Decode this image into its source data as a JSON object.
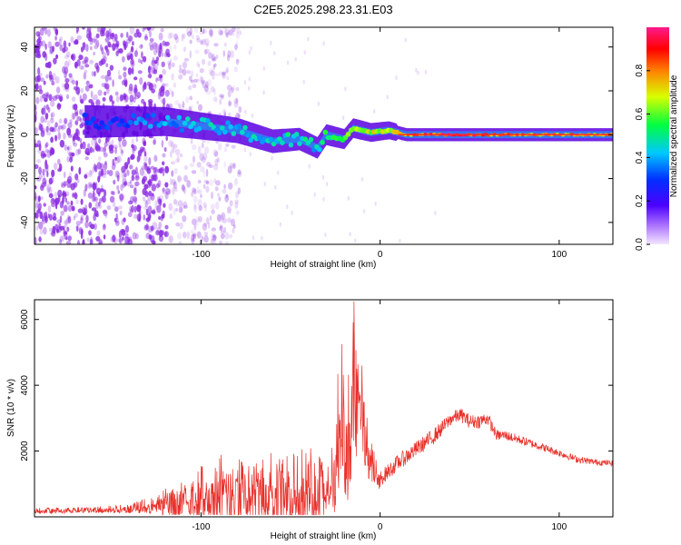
{
  "title": "C2E5.2025.298.23.31.E03",
  "colors": {
    "noise": "#8a2be2",
    "track": "#5a00e0",
    "snr_line": "#e8302a",
    "colorbar": [
      "#f3e6ff",
      "#7b2bf2",
      "#0000ff",
      "#00c8ff",
      "#00ff40",
      "#ffff00",
      "#ff8000",
      "#ff0000",
      "#ff1a8c"
    ]
  },
  "chart_data": [
    {
      "type": "heatmap",
      "name": "spectrogram",
      "xlabel": "Height of straight line (km)",
      "ylabel": "Frequency (Hz)",
      "xlim": [
        -193,
        130
      ],
      "ylim": [
        -50,
        49
      ],
      "xticks": [
        -100,
        0,
        100
      ],
      "yticks": [
        40,
        20,
        0,
        -20,
        -40
      ],
      "colorbar": {
        "label": "Normalized spectral amplitude",
        "range": [
          0,
          1
        ],
        "ticks": [
          "0.0",
          "0.2",
          "0.4",
          "0.6",
          "0.8"
        ],
        "tick_values": [
          0,
          0.2,
          0.4,
          0.6,
          0.8
        ]
      },
      "ridge": [
        {
          "x": -160,
          "f": 6,
          "amp": 0.3
        },
        {
          "x": -140,
          "f": 6,
          "amp": 0.35
        },
        {
          "x": -120,
          "f": 6,
          "amp": 0.4
        },
        {
          "x": -100,
          "f": 4,
          "amp": 0.45
        },
        {
          "x": -80,
          "f": 2,
          "amp": 0.45
        },
        {
          "x": -60,
          "f": -3,
          "amp": 0.45
        },
        {
          "x": -45,
          "f": -2,
          "amp": 0.5
        },
        {
          "x": -35,
          "f": -6,
          "amp": 0.45
        },
        {
          "x": -30,
          "f": 0,
          "amp": 0.55
        },
        {
          "x": -20,
          "f": -2,
          "amp": 0.7
        },
        {
          "x": -15,
          "f": 3,
          "amp": 0.65
        },
        {
          "x": -5,
          "f": 1,
          "amp": 0.7
        },
        {
          "x": 5,
          "f": 2,
          "amp": 0.65
        },
        {
          "x": 15,
          "f": 0,
          "amp": 0.8
        },
        {
          "x": 40,
          "f": 0,
          "amp": 0.95
        },
        {
          "x": 60,
          "f": 0,
          "amp": 0.85
        },
        {
          "x": 90,
          "f": 0,
          "amp": 0.75
        },
        {
          "x": 110,
          "f": 0,
          "amp": 0.8
        },
        {
          "x": 130,
          "f": 0,
          "amp": 0.75
        }
      ]
    },
    {
      "type": "line",
      "name": "snr",
      "xlabel": "Height of straight line (km)",
      "ylabel": "SNR (10 * v/v)",
      "xlim": [
        -193,
        130
      ],
      "ylim": [
        0,
        6600
      ],
      "xticks": [
        -100,
        0,
        100
      ],
      "yticks": [
        2000,
        4000,
        6000
      ],
      "series": [
        {
          "name": "SNR",
          "envelope": {
            "x": [
              -193,
              -160,
              -140,
              -125,
              -115,
              -105,
              -95,
              -85,
              -75,
              -65,
              -55,
              -45,
              -35,
              -28,
              -25,
              -22,
              -18,
              -14,
              -10,
              -6,
              0,
              10,
              20,
              30,
              40,
              45,
              50,
              55,
              60,
              65,
              70,
              80,
              90,
              100,
              110,
              120,
              130
            ],
            "y": [
              250,
              280,
              350,
              600,
              900,
              1300,
              1500,
              1700,
              1600,
              1700,
              1600,
              1900,
              1700,
              1300,
              2900,
              5400,
              3600,
              6500,
              4200,
              2300,
              1500,
              2000,
              2400,
              2800,
              3300,
              3400,
              3200,
              3200,
              3300,
              2700,
              2700,
              2500,
              2300,
              2100,
              1900,
              1800,
              1750
            ]
          },
          "noise": {
            "x": [
              -193,
              -160,
              -140,
              -125,
              -115,
              -105,
              -95,
              -85,
              -75,
              -65,
              -55,
              -45,
              -35,
              -28,
              -25,
              -22,
              -18,
              -14,
              -10,
              -6,
              0,
              10,
              20,
              30,
              40,
              50,
              60,
              65,
              70,
              90,
              110,
              130
            ],
            "y": [
              80,
              80,
              120,
              250,
              500,
              700,
              800,
              1000,
              900,
              1000,
              900,
              1100,
              1000,
              600,
              1400,
              2200,
              1600,
              2400,
              1400,
              600,
              350,
              350,
              350,
              350,
              300,
              300,
              300,
              220,
              220,
              170,
              150,
              120
            ]
          }
        }
      ]
    }
  ]
}
